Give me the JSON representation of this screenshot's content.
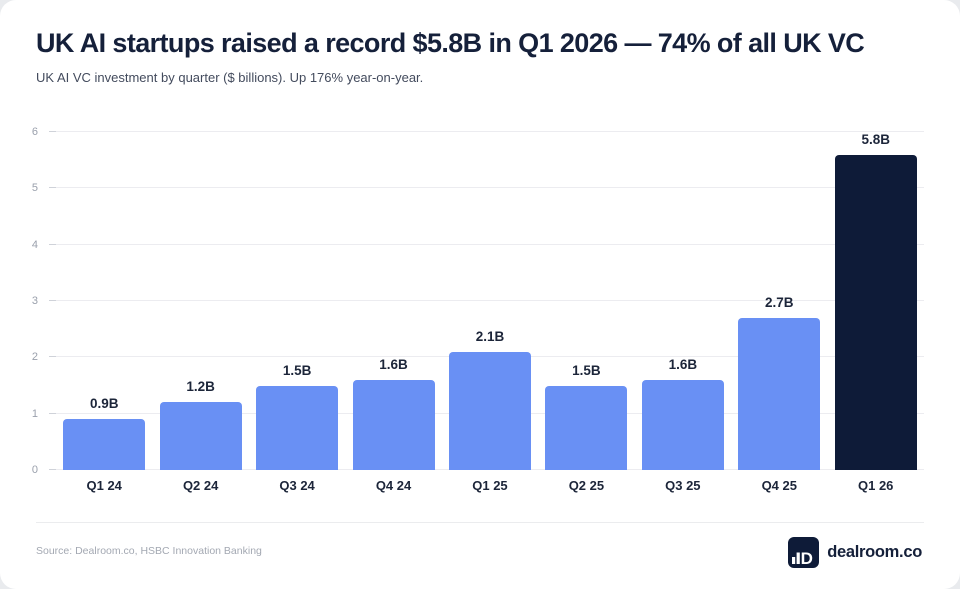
{
  "page": {
    "title": "UK AI startups raised a record $5.8B in Q1 2026 — 74% of all UK VC",
    "subtitle": "UK AI VC investment by quarter ($ billions). Up 176% year-on-year."
  },
  "chart_data": {
    "type": "bar",
    "title": "UK AI VC investment by quarter ($ billions)",
    "categories": [
      "Q1 24",
      "Q2 24",
      "Q3 24",
      "Q4 24",
      "Q1 25",
      "Q2 25",
      "Q3 25",
      "Q4 25",
      "Q1 26"
    ],
    "values": [
      0.9,
      1.2,
      1.5,
      1.6,
      2.1,
      1.5,
      1.6,
      2.7,
      5.8
    ],
    "value_labels": [
      "0.9B",
      "1.2B",
      "1.5B",
      "1.6B",
      "2.1B",
      "1.5B",
      "1.6B",
      "2.7B",
      "5.8B"
    ],
    "highlight_index": 8,
    "xlabel": "",
    "ylabel": "",
    "ylim": [
      0,
      6
    ],
    "yticks": [
      0,
      1,
      2,
      3,
      4,
      5,
      6
    ],
    "grid": true,
    "legend": "none",
    "bar_color": "#6990f4",
    "highlight_color": "#0e1b38"
  },
  "colors": {
    "ink": "#15203a",
    "navy": "#0e1b38",
    "bar_blue": "#6990f4"
  },
  "footer": {
    "source": "Source: Dealroom.co, HSBC Innovation Banking",
    "logo_text": "dealroom.co"
  }
}
